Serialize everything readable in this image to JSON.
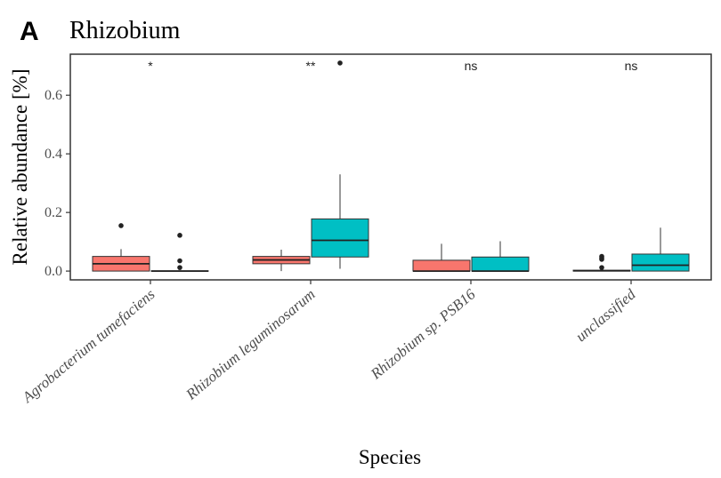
{
  "panel_letter": "A",
  "chart_data": {
    "type": "box",
    "title": "Rhizobium",
    "xlabel": "Species",
    "ylabel": "Relative abundance [%]",
    "ylim": [
      -0.03,
      0.74
    ],
    "yticks": [
      0.0,
      0.2,
      0.4,
      0.6
    ],
    "ytick_labels": [
      "0.0",
      "0.2",
      "0.4",
      "0.6"
    ],
    "grid": false,
    "categories": [
      "Agrobacterium tumefaciens",
      "Rhizobium leguminosarum",
      "Rhizobium sp. PSB16",
      "unclassified"
    ],
    "significance": [
      "*",
      "**",
      "ns",
      "ns"
    ],
    "series": [
      {
        "color": "#F8766D",
        "boxes": [
          {
            "low": 0.0,
            "q1": 0.0,
            "median": 0.025,
            "q3": 0.05,
            "high": 0.075,
            "outliers": [
              0.155
            ]
          },
          {
            "low": 0.0,
            "q1": 0.025,
            "median": 0.038,
            "q3": 0.05,
            "high": 0.073,
            "outliers": []
          },
          {
            "low": 0.0,
            "q1": 0.0,
            "median": 0.0,
            "q3": 0.037,
            "high": 0.093,
            "outliers": []
          },
          {
            "low": 0.0,
            "q1": 0.0,
            "median": 0.001,
            "q3": 0.003,
            "high": 0.005,
            "outliers": [
              0.012,
              0.04,
              0.045,
              0.05
            ]
          }
        ]
      },
      {
        "color": "#00BFC4",
        "boxes": [
          {
            "low": 0.0,
            "q1": 0.0,
            "median": 0.0,
            "q3": 0.001,
            "high": 0.001,
            "outliers": [
              0.012,
              0.035,
              0.122
            ]
          },
          {
            "low": 0.008,
            "q1": 0.048,
            "median": 0.105,
            "q3": 0.178,
            "high": 0.33,
            "outliers": [
              0.71
            ]
          },
          {
            "low": 0.0,
            "q1": 0.0,
            "median": 0.0,
            "q3": 0.048,
            "high": 0.102,
            "outliers": []
          },
          {
            "low": 0.0,
            "q1": 0.0,
            "median": 0.02,
            "q3": 0.058,
            "high": 0.148,
            "outliers": []
          }
        ]
      }
    ]
  }
}
